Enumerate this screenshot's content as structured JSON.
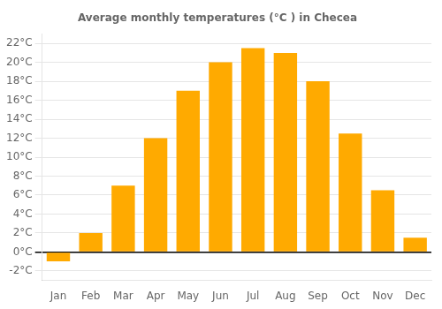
{
  "chart_data": {
    "type": "bar",
    "title": "Average monthly temperatures (°C ) in Checea",
    "categories": [
      "Jan",
      "Feb",
      "Mar",
      "Apr",
      "May",
      "Jun",
      "Jul",
      "Aug",
      "Sep",
      "Oct",
      "Nov",
      "Dec"
    ],
    "values": [
      -1.0,
      2.0,
      7.0,
      12.0,
      17.0,
      20.0,
      21.5,
      21.0,
      18.0,
      12.5,
      6.5,
      1.5
    ],
    "color": "#FFAA00",
    "ylim": [
      -3,
      23
    ],
    "yticks": [
      {
        "value": -2,
        "label": "-2°C"
      },
      {
        "value": 0,
        "label": "0°C"
      },
      {
        "value": 2,
        "label": "2°C"
      },
      {
        "value": 4,
        "label": "4°C"
      },
      {
        "value": 6,
        "label": "6°C"
      },
      {
        "value": 8,
        "label": "8°C"
      },
      {
        "value": 10,
        "label": "10°C"
      },
      {
        "value": 12,
        "label": "12°C"
      },
      {
        "value": 14,
        "label": "14°C"
      },
      {
        "value": 16,
        "label": "16°C"
      },
      {
        "value": 18,
        "label": "18°C"
      },
      {
        "value": 20,
        "label": "20°C"
      },
      {
        "value": 22,
        "label": "22°C"
      }
    ],
    "grid": true
  }
}
